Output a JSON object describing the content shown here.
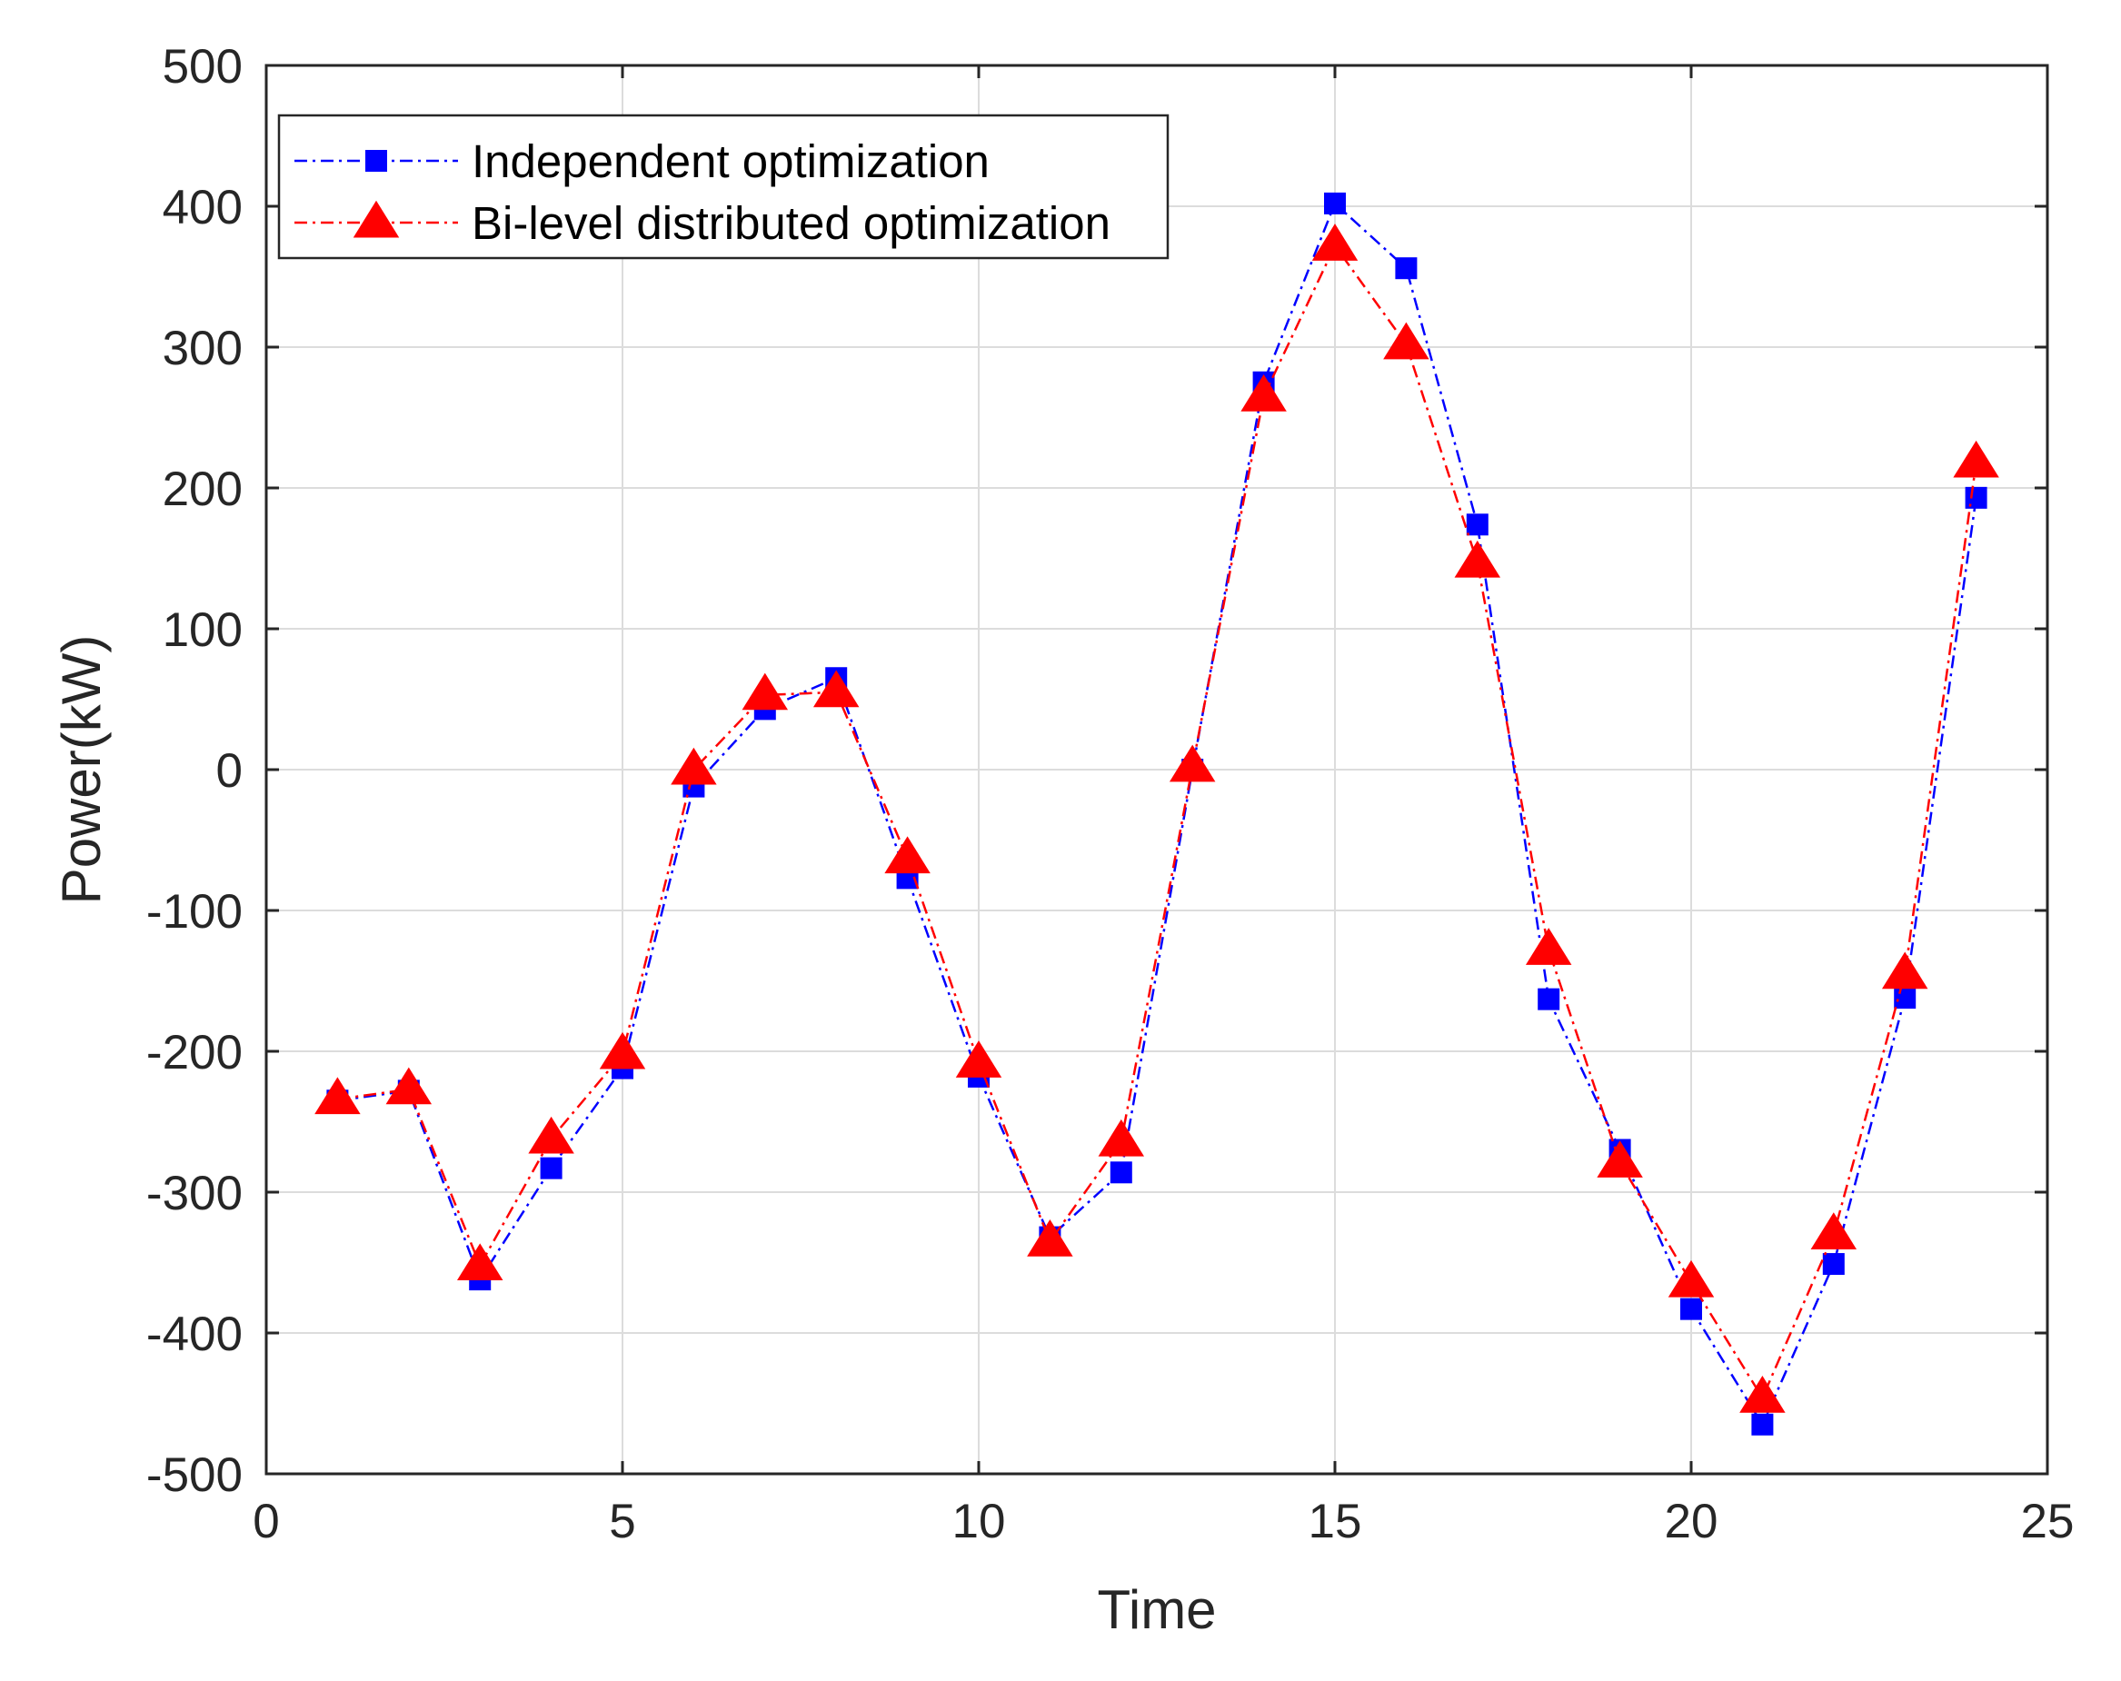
{
  "chart_data": {
    "type": "line",
    "title": "",
    "xlabel": "Time",
    "ylabel": "Power(kW)",
    "xlim": [
      0,
      25
    ],
    "ylim": [
      -500,
      500
    ],
    "xticks": [
      0,
      5,
      10,
      15,
      20,
      25
    ],
    "yticks": [
      -500,
      -400,
      -300,
      -200,
      -100,
      0,
      100,
      200,
      300,
      400,
      500
    ],
    "grid": true,
    "legend_position": "top-left",
    "x": [
      1,
      2,
      3,
      4,
      5,
      6,
      7,
      8,
      9,
      10,
      11,
      12,
      13,
      14,
      15,
      16,
      17,
      18,
      19,
      20,
      21,
      22,
      23,
      24
    ],
    "series": [
      {
        "name": "Independent optimization",
        "color": "#0000ff",
        "marker": "square",
        "line_style": "dash-dot",
        "values": [
          -235,
          -228,
          -362,
          -283,
          -212,
          -12,
          43,
          65,
          -77,
          -218,
          -332,
          -286,
          0,
          275,
          402,
          356,
          174,
          -163,
          -270,
          -383,
          -465,
          -351,
          -162,
          193
        ]
      },
      {
        "name": "Bi-level distributed optimization",
        "color": "#ff0000",
        "marker": "triangle",
        "line_style": "dash-dot",
        "values": [
          -234,
          -227,
          -352,
          -262,
          -202,
          0,
          53,
          55,
          -63,
          -208,
          -335,
          -264,
          2,
          265,
          372,
          302,
          147,
          -128,
          -279,
          -364,
          -446,
          -330,
          -145,
          218
        ]
      }
    ]
  }
}
